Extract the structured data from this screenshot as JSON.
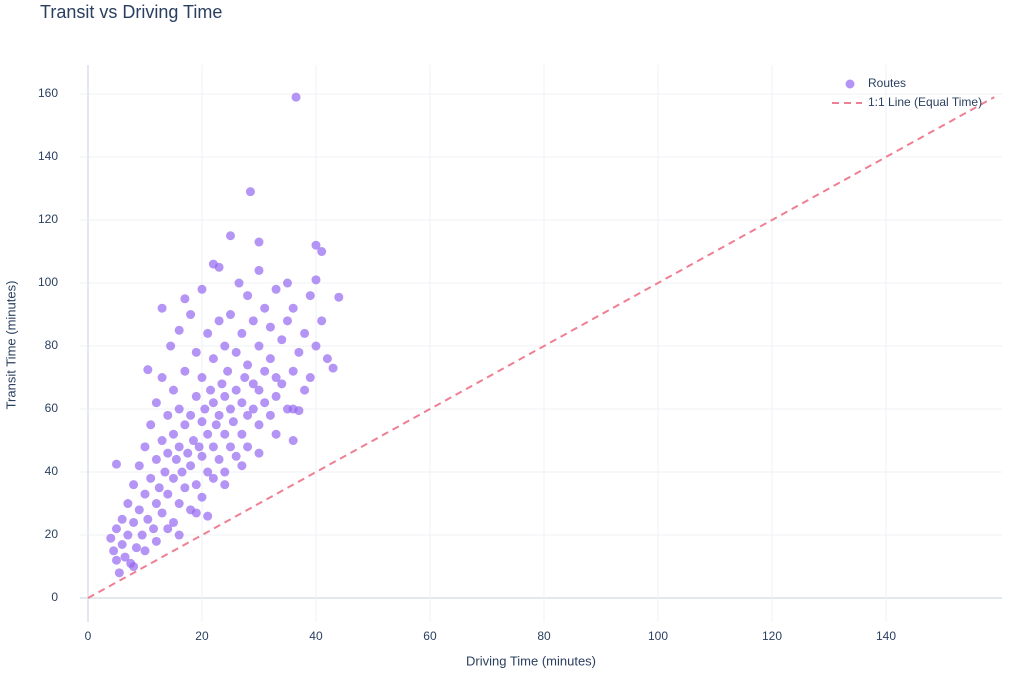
{
  "chart_data": {
    "type": "scatter",
    "title": "Transit vs Driving Time",
    "x_label": "Driving Time (minutes)",
    "y_label": "Transit Time (minutes)",
    "xlim": [
      -1.4,
      160.35
    ],
    "ylim": [
      -7.6,
      169.2
    ],
    "xticks": [
      0,
      20,
      40,
      60,
      80,
      100,
      120,
      140
    ],
    "yticks": [
      0,
      20,
      40,
      60,
      80,
      100,
      120,
      140,
      160
    ],
    "grid": true,
    "legend": "top-right",
    "series": [
      {
        "name": "Routes",
        "color": "#9466f0",
        "mode": "markers",
        "x": [
          36.5,
          28.5,
          25,
          30,
          40,
          41,
          44,
          23,
          42,
          43,
          39,
          36,
          37,
          5,
          10.5,
          13,
          17,
          20,
          4,
          4.5,
          5,
          5,
          5.5,
          6,
          6,
          6.5,
          7,
          7,
          7.5,
          8,
          8,
          8.5,
          9,
          9,
          9.5,
          10,
          10,
          10.5,
          11,
          11,
          11.5,
          12,
          12,
          12,
          12.5,
          13,
          13,
          13,
          13.5,
          14,
          14,
          14,
          14.5,
          15,
          15,
          15,
          15,
          15.5,
          16,
          16,
          16,
          16,
          16.5,
          17,
          17,
          17,
          17.5,
          18,
          18,
          18,
          18,
          18.5,
          19,
          19,
          19,
          19.5,
          20,
          20,
          20,
          20,
          20.5,
          21,
          21,
          21,
          21.5,
          22,
          22,
          22,
          22,
          22.5,
          23,
          23,
          23,
          23.5,
          24,
          24,
          24,
          24,
          24.5,
          25,
          25,
          25,
          25.5,
          26,
          26,
          26,
          26.5,
          27,
          27,
          27,
          27.5,
          28,
          28,
          28,
          28,
          29,
          29,
          29,
          30,
          30,
          30,
          30,
          31,
          31,
          31,
          32,
          32,
          32,
          33,
          33,
          33,
          34,
          34,
          35,
          35,
          35,
          36,
          36,
          37,
          38,
          38,
          39,
          40,
          40,
          41,
          22,
          19,
          16,
          10,
          8,
          12,
          14,
          21,
          24,
          27,
          30,
          33,
          36
        ],
        "values": [
          159,
          129,
          115,
          113,
          112,
          110,
          95.5,
          105,
          76,
          73,
          70,
          60,
          59.5,
          42.5,
          72.5,
          92,
          95,
          98,
          19,
          15,
          12,
          22,
          8,
          17,
          25,
          13,
          20,
          30,
          11,
          24,
          36,
          16,
          28,
          42,
          20,
          33,
          48,
          25,
          38,
          55,
          22,
          30,
          44,
          62,
          35,
          27,
          50,
          70,
          40,
          33,
          46,
          58,
          80,
          24,
          38,
          52,
          66,
          44,
          30,
          48,
          60,
          85,
          40,
          35,
          55,
          72,
          46,
          28,
          42,
          58,
          90,
          50,
          36,
          64,
          78,
          48,
          32,
          45,
          56,
          70,
          60,
          40,
          52,
          84,
          66,
          38,
          48,
          62,
          76,
          55,
          44,
          58,
          88,
          68,
          40,
          52,
          64,
          80,
          72,
          48,
          60,
          90,
          56,
          45,
          66,
          78,
          100,
          52,
          62,
          84,
          70,
          48,
          58,
          74,
          96,
          60,
          68,
          88,
          55,
          66,
          80,
          104,
          62,
          72,
          92,
          58,
          76,
          86,
          64,
          70,
          98,
          68,
          82,
          60,
          88,
          100,
          72,
          92,
          78,
          84,
          66,
          96,
          80,
          101,
          88,
          106,
          27,
          20,
          15,
          10,
          18,
          22,
          26,
          36,
          42,
          46,
          52,
          50
        ]
      },
      {
        "name": "1:1 Line (Equal Time)",
        "color": "#ef7f93",
        "mode": "lines",
        "dash": true,
        "x": [
          0,
          159
        ],
        "values": [
          0,
          159
        ]
      }
    ]
  }
}
